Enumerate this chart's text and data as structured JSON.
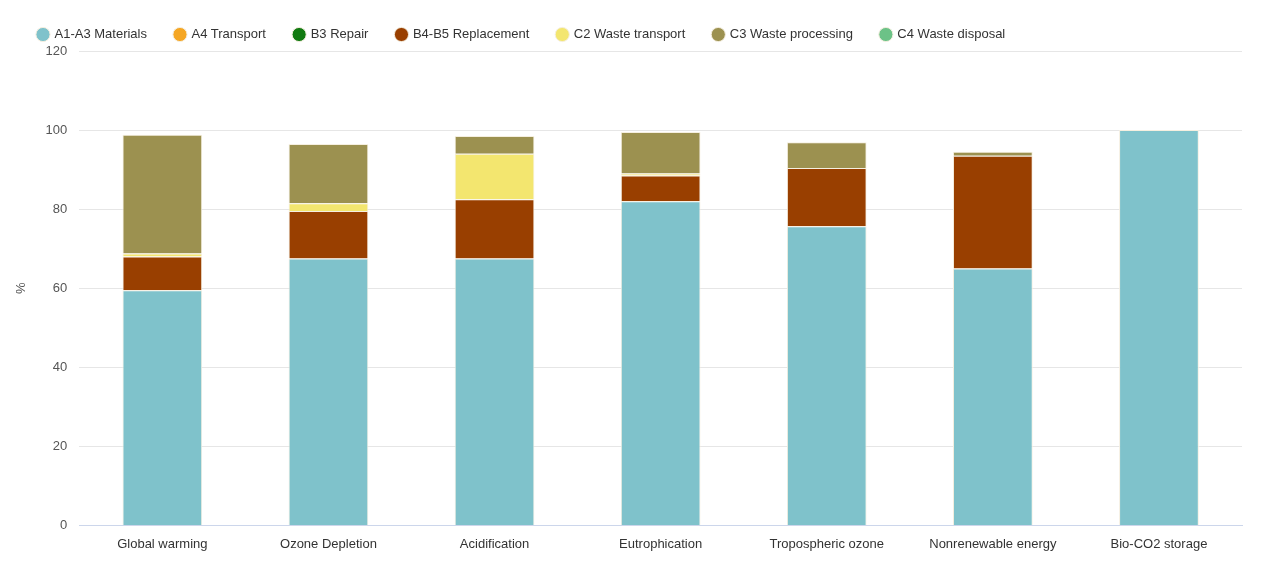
{
  "chart_data": {
    "type": "bar",
    "stacked": true,
    "ylabel": "%",
    "categories": [
      "Global warming",
      "Ozone Depletion",
      "Acidification",
      "Eutrophication",
      "Tropospheric ozone",
      "Nonrenewable energy",
      "Bio-CO2 storage"
    ],
    "series": [
      {
        "name": "A1-A3 Materials",
        "color": "#7fc2cb",
        "values": [
          59.5,
          67.5,
          67.5,
          82,
          75.7,
          65,
          100
        ]
      },
      {
        "name": "A4 Transport",
        "color": "#f5a623",
        "values": [
          0,
          0,
          0,
          0,
          0,
          0,
          0
        ]
      },
      {
        "name": "B3 Repair",
        "color": "#117a11",
        "values": [
          0,
          0,
          0,
          0,
          0,
          0,
          0
        ]
      },
      {
        "name": "B4-B5 Replacement",
        "color": "#993f00",
        "values": [
          8.5,
          12,
          15,
          6.5,
          14.7,
          28.5,
          0
        ]
      },
      {
        "name": "C2 Waste transport",
        "color": "#f3e66f",
        "values": [
          0.8,
          2,
          11.5,
          0.5,
          0,
          null,
          0
        ]
      },
      {
        "name": "C3 Waste processing",
        "color": "#9c9150",
        "values": [
          30,
          15,
          4.5,
          10.5,
          6.5,
          1,
          0
        ]
      },
      {
        "name": "C4 Waste disposal",
        "color": "#6cc287",
        "values": [
          0,
          0,
          0,
          0,
          0,
          0,
          0
        ]
      }
    ],
    "ylim": [
      0,
      120
    ],
    "yticks": [
      0,
      20,
      40,
      60,
      80,
      100,
      120
    ],
    "grid": "y",
    "legend": "top left"
  }
}
